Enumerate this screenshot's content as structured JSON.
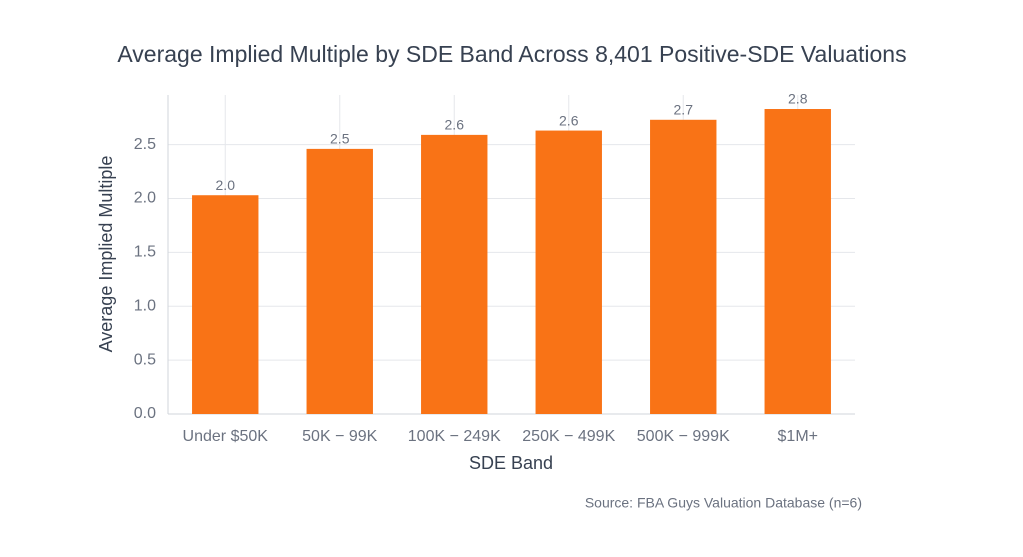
{
  "chart_data": {
    "type": "bar",
    "title": "Average Implied Multiple by SDE Band Across 8,401 Positive-SDE Valuations",
    "x_label": "SDE Band",
    "y_label": "Average Implied Multiple",
    "source": "Source: FBA Guys Valuation Database (n=6)",
    "categories": [
      "Under $50K",
      "50K − 99K",
      "100K − 249K",
      "250K − 499K",
      "500K − 999K",
      "$1M+"
    ],
    "values": [
      2.03,
      2.46,
      2.59,
      2.63,
      2.73,
      2.83
    ],
    "value_labels": [
      "2.0",
      "2.5",
      "2.6",
      "2.6",
      "2.7",
      "2.8"
    ],
    "color": "#f97316",
    "ylim": [
      0,
      2.96
    ],
    "yticks": [
      {
        "value": 0,
        "label": "0.0"
      },
      0.5,
      {
        "value": 1,
        "label": "1.0"
      },
      1.5,
      {
        "value": 2,
        "label": "2.0"
      },
      2.5
    ],
    "grid": true
  }
}
